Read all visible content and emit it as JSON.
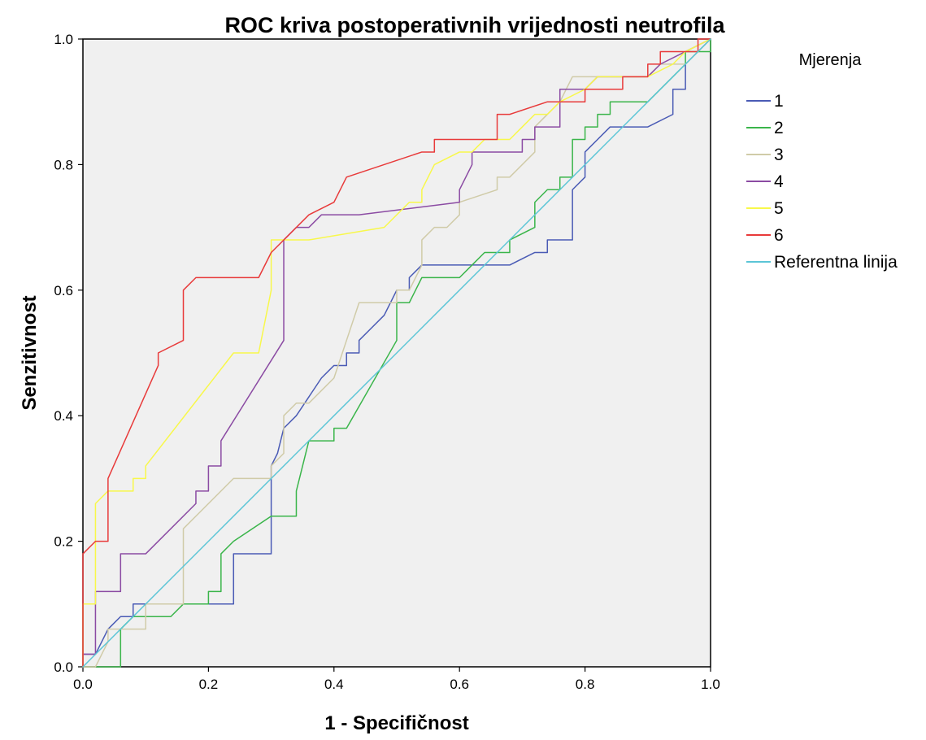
{
  "chart_data": {
    "type": "line",
    "title": "ROC kriva postoperativnih vrijednosti neutrofila",
    "xlabel": "1 - Specifičnost",
    "ylabel": "Senzitivnost",
    "xlim": [
      0,
      1
    ],
    "ylim": [
      0,
      1
    ],
    "xticks": [
      "0.0",
      "0.2",
      "0.4",
      "0.6",
      "0.8",
      "1.0"
    ],
    "yticks": [
      "0.0",
      "0.2",
      "0.4",
      "0.6",
      "0.8",
      "1.0"
    ],
    "grid": false,
    "background": "#f0f0f0",
    "legend": {
      "title": "Mjerenja",
      "placement": "right"
    },
    "series": [
      {
        "name": "1",
        "color": "#4a5bb5",
        "points": [
          [
            0,
            0
          ],
          [
            0,
            0.02
          ],
          [
            0.02,
            0.02
          ],
          [
            0.04,
            0.06
          ],
          [
            0.06,
            0.08
          ],
          [
            0.08,
            0.08
          ],
          [
            0.08,
            0.1
          ],
          [
            0.14,
            0.1
          ],
          [
            0.24,
            0.1
          ],
          [
            0.24,
            0.18
          ],
          [
            0.3,
            0.18
          ],
          [
            0.3,
            0.32
          ],
          [
            0.31,
            0.34
          ],
          [
            0.32,
            0.38
          ],
          [
            0.34,
            0.4
          ],
          [
            0.36,
            0.43
          ],
          [
            0.38,
            0.46
          ],
          [
            0.4,
            0.48
          ],
          [
            0.42,
            0.48
          ],
          [
            0.42,
            0.5
          ],
          [
            0.44,
            0.5
          ],
          [
            0.44,
            0.52
          ],
          [
            0.46,
            0.54
          ],
          [
            0.48,
            0.56
          ],
          [
            0.5,
            0.6
          ],
          [
            0.52,
            0.6
          ],
          [
            0.52,
            0.62
          ],
          [
            0.54,
            0.64
          ],
          [
            0.66,
            0.64
          ],
          [
            0.68,
            0.64
          ],
          [
            0.72,
            0.66
          ],
          [
            0.74,
            0.66
          ],
          [
            0.74,
            0.68
          ],
          [
            0.78,
            0.68
          ],
          [
            0.78,
            0.76
          ],
          [
            0.8,
            0.78
          ],
          [
            0.8,
            0.82
          ],
          [
            0.82,
            0.84
          ],
          [
            0.84,
            0.86
          ],
          [
            0.88,
            0.86
          ],
          [
            0.9,
            0.86
          ],
          [
            0.94,
            0.88
          ],
          [
            0.94,
            0.92
          ],
          [
            0.96,
            0.92
          ],
          [
            0.96,
            0.96
          ],
          [
            0.98,
            0.98
          ],
          [
            1.0,
            1.0
          ]
        ]
      },
      {
        "name": "2",
        "color": "#3ab54a",
        "points": [
          [
            0,
            0
          ],
          [
            0.06,
            0
          ],
          [
            0.06,
            0.06
          ],
          [
            0.08,
            0.08
          ],
          [
            0.14,
            0.08
          ],
          [
            0.16,
            0.1
          ],
          [
            0.2,
            0.1
          ],
          [
            0.2,
            0.12
          ],
          [
            0.22,
            0.12
          ],
          [
            0.22,
            0.18
          ],
          [
            0.24,
            0.2
          ],
          [
            0.3,
            0.24
          ],
          [
            0.34,
            0.24
          ],
          [
            0.34,
            0.28
          ],
          [
            0.36,
            0.36
          ],
          [
            0.38,
            0.36
          ],
          [
            0.4,
            0.36
          ],
          [
            0.4,
            0.38
          ],
          [
            0.42,
            0.38
          ],
          [
            0.5,
            0.52
          ],
          [
            0.5,
            0.58
          ],
          [
            0.52,
            0.58
          ],
          [
            0.54,
            0.62
          ],
          [
            0.6,
            0.62
          ],
          [
            0.62,
            0.64
          ],
          [
            0.64,
            0.66
          ],
          [
            0.68,
            0.66
          ],
          [
            0.68,
            0.68
          ],
          [
            0.72,
            0.7
          ],
          [
            0.72,
            0.74
          ],
          [
            0.74,
            0.76
          ],
          [
            0.76,
            0.76
          ],
          [
            0.76,
            0.78
          ],
          [
            0.78,
            0.78
          ],
          [
            0.78,
            0.84
          ],
          [
            0.8,
            0.84
          ],
          [
            0.8,
            0.86
          ],
          [
            0.82,
            0.86
          ],
          [
            0.82,
            0.88
          ],
          [
            0.84,
            0.88
          ],
          [
            0.84,
            0.9
          ],
          [
            0.9,
            0.9
          ],
          [
            0.92,
            0.92
          ],
          [
            0.96,
            0.96
          ],
          [
            0.96,
            0.98
          ],
          [
            1.0,
            0.98
          ],
          [
            1.0,
            1.0
          ]
        ]
      },
      {
        "name": "3",
        "color": "#d0cba8",
        "points": [
          [
            0,
            0
          ],
          [
            0.02,
            0
          ],
          [
            0.04,
            0.04
          ],
          [
            0.04,
            0.06
          ],
          [
            0.08,
            0.06
          ],
          [
            0.1,
            0.06
          ],
          [
            0.1,
            0.1
          ],
          [
            0.16,
            0.1
          ],
          [
            0.16,
            0.22
          ],
          [
            0.18,
            0.24
          ],
          [
            0.24,
            0.3
          ],
          [
            0.3,
            0.3
          ],
          [
            0.3,
            0.32
          ],
          [
            0.32,
            0.34
          ],
          [
            0.32,
            0.4
          ],
          [
            0.34,
            0.42
          ],
          [
            0.36,
            0.42
          ],
          [
            0.38,
            0.44
          ],
          [
            0.4,
            0.46
          ],
          [
            0.42,
            0.52
          ],
          [
            0.44,
            0.58
          ],
          [
            0.5,
            0.58
          ],
          [
            0.5,
            0.6
          ],
          [
            0.52,
            0.6
          ],
          [
            0.54,
            0.64
          ],
          [
            0.54,
            0.68
          ],
          [
            0.56,
            0.7
          ],
          [
            0.58,
            0.7
          ],
          [
            0.6,
            0.72
          ],
          [
            0.6,
            0.74
          ],
          [
            0.66,
            0.76
          ],
          [
            0.66,
            0.78
          ],
          [
            0.68,
            0.78
          ],
          [
            0.72,
            0.82
          ],
          [
            0.72,
            0.86
          ],
          [
            0.76,
            0.9
          ],
          [
            0.78,
            0.94
          ],
          [
            0.82,
            0.94
          ],
          [
            0.84,
            0.94
          ],
          [
            0.86,
            0.94
          ],
          [
            0.9,
            0.94
          ],
          [
            0.92,
            0.96
          ],
          [
            0.96,
            0.96
          ],
          [
            0.98,
            0.98
          ],
          [
            1.0,
            1.0
          ]
        ]
      },
      {
        "name": "4",
        "color": "#8b4ba3",
        "points": [
          [
            0,
            0
          ],
          [
            0,
            0.02
          ],
          [
            0.02,
            0.02
          ],
          [
            0.02,
            0.12
          ],
          [
            0.06,
            0.12
          ],
          [
            0.06,
            0.18
          ],
          [
            0.1,
            0.18
          ],
          [
            0.18,
            0.26
          ],
          [
            0.18,
            0.28
          ],
          [
            0.2,
            0.28
          ],
          [
            0.2,
            0.32
          ],
          [
            0.22,
            0.32
          ],
          [
            0.22,
            0.36
          ],
          [
            0.32,
            0.52
          ],
          [
            0.32,
            0.68
          ],
          [
            0.34,
            0.7
          ],
          [
            0.36,
            0.7
          ],
          [
            0.38,
            0.72
          ],
          [
            0.44,
            0.72
          ],
          [
            0.6,
            0.74
          ],
          [
            0.6,
            0.76
          ],
          [
            0.62,
            0.8
          ],
          [
            0.62,
            0.82
          ],
          [
            0.7,
            0.82
          ],
          [
            0.7,
            0.84
          ],
          [
            0.72,
            0.84
          ],
          [
            0.72,
            0.86
          ],
          [
            0.76,
            0.86
          ],
          [
            0.76,
            0.92
          ],
          [
            0.8,
            0.92
          ],
          [
            0.82,
            0.94
          ],
          [
            0.9,
            0.94
          ],
          [
            0.92,
            0.96
          ],
          [
            0.96,
            0.98
          ],
          [
            1.0,
            1.0
          ]
        ]
      },
      {
        "name": "5",
        "color": "#f8f84a",
        "points": [
          [
            0,
            0
          ],
          [
            0,
            0.1
          ],
          [
            0.02,
            0.1
          ],
          [
            0.02,
            0.26
          ],
          [
            0.04,
            0.28
          ],
          [
            0.08,
            0.28
          ],
          [
            0.08,
            0.3
          ],
          [
            0.1,
            0.3
          ],
          [
            0.1,
            0.32
          ],
          [
            0.24,
            0.5
          ],
          [
            0.28,
            0.5
          ],
          [
            0.3,
            0.6
          ],
          [
            0.3,
            0.68
          ],
          [
            0.36,
            0.68
          ],
          [
            0.48,
            0.7
          ],
          [
            0.52,
            0.74
          ],
          [
            0.54,
            0.74
          ],
          [
            0.54,
            0.76
          ],
          [
            0.56,
            0.8
          ],
          [
            0.6,
            0.82
          ],
          [
            0.62,
            0.82
          ],
          [
            0.64,
            0.84
          ],
          [
            0.68,
            0.84
          ],
          [
            0.7,
            0.86
          ],
          [
            0.72,
            0.88
          ],
          [
            0.74,
            0.88
          ],
          [
            0.76,
            0.9
          ],
          [
            0.8,
            0.92
          ],
          [
            0.82,
            0.94
          ],
          [
            0.84,
            0.94
          ],
          [
            0.9,
            0.94
          ],
          [
            0.94,
            0.96
          ],
          [
            0.96,
            0.98
          ],
          [
            1.0,
            1.0
          ]
        ]
      },
      {
        "name": "6",
        "color": "#e83a3a",
        "points": [
          [
            0,
            0
          ],
          [
            0,
            0.18
          ],
          [
            0.02,
            0.2
          ],
          [
            0.04,
            0.2
          ],
          [
            0.04,
            0.3
          ],
          [
            0.12,
            0.48
          ],
          [
            0.12,
            0.5
          ],
          [
            0.16,
            0.52
          ],
          [
            0.16,
            0.6
          ],
          [
            0.18,
            0.62
          ],
          [
            0.28,
            0.62
          ],
          [
            0.3,
            0.66
          ],
          [
            0.36,
            0.72
          ],
          [
            0.38,
            0.73
          ],
          [
            0.4,
            0.74
          ],
          [
            0.42,
            0.78
          ],
          [
            0.54,
            0.82
          ],
          [
            0.56,
            0.82
          ],
          [
            0.56,
            0.84
          ],
          [
            0.66,
            0.84
          ],
          [
            0.66,
            0.88
          ],
          [
            0.68,
            0.88
          ],
          [
            0.74,
            0.9
          ],
          [
            0.8,
            0.9
          ],
          [
            0.8,
            0.92
          ],
          [
            0.86,
            0.92
          ],
          [
            0.86,
            0.94
          ],
          [
            0.9,
            0.94
          ],
          [
            0.9,
            0.96
          ],
          [
            0.92,
            0.96
          ],
          [
            0.92,
            0.98
          ],
          [
            0.94,
            0.98
          ],
          [
            0.98,
            0.98
          ],
          [
            0.98,
            1.0
          ],
          [
            1.0,
            1.0
          ]
        ]
      },
      {
        "name": "Referentna linija",
        "color": "#5bc5d6",
        "points": [
          [
            0,
            0
          ],
          [
            1.0,
            1.0
          ]
        ]
      }
    ]
  }
}
